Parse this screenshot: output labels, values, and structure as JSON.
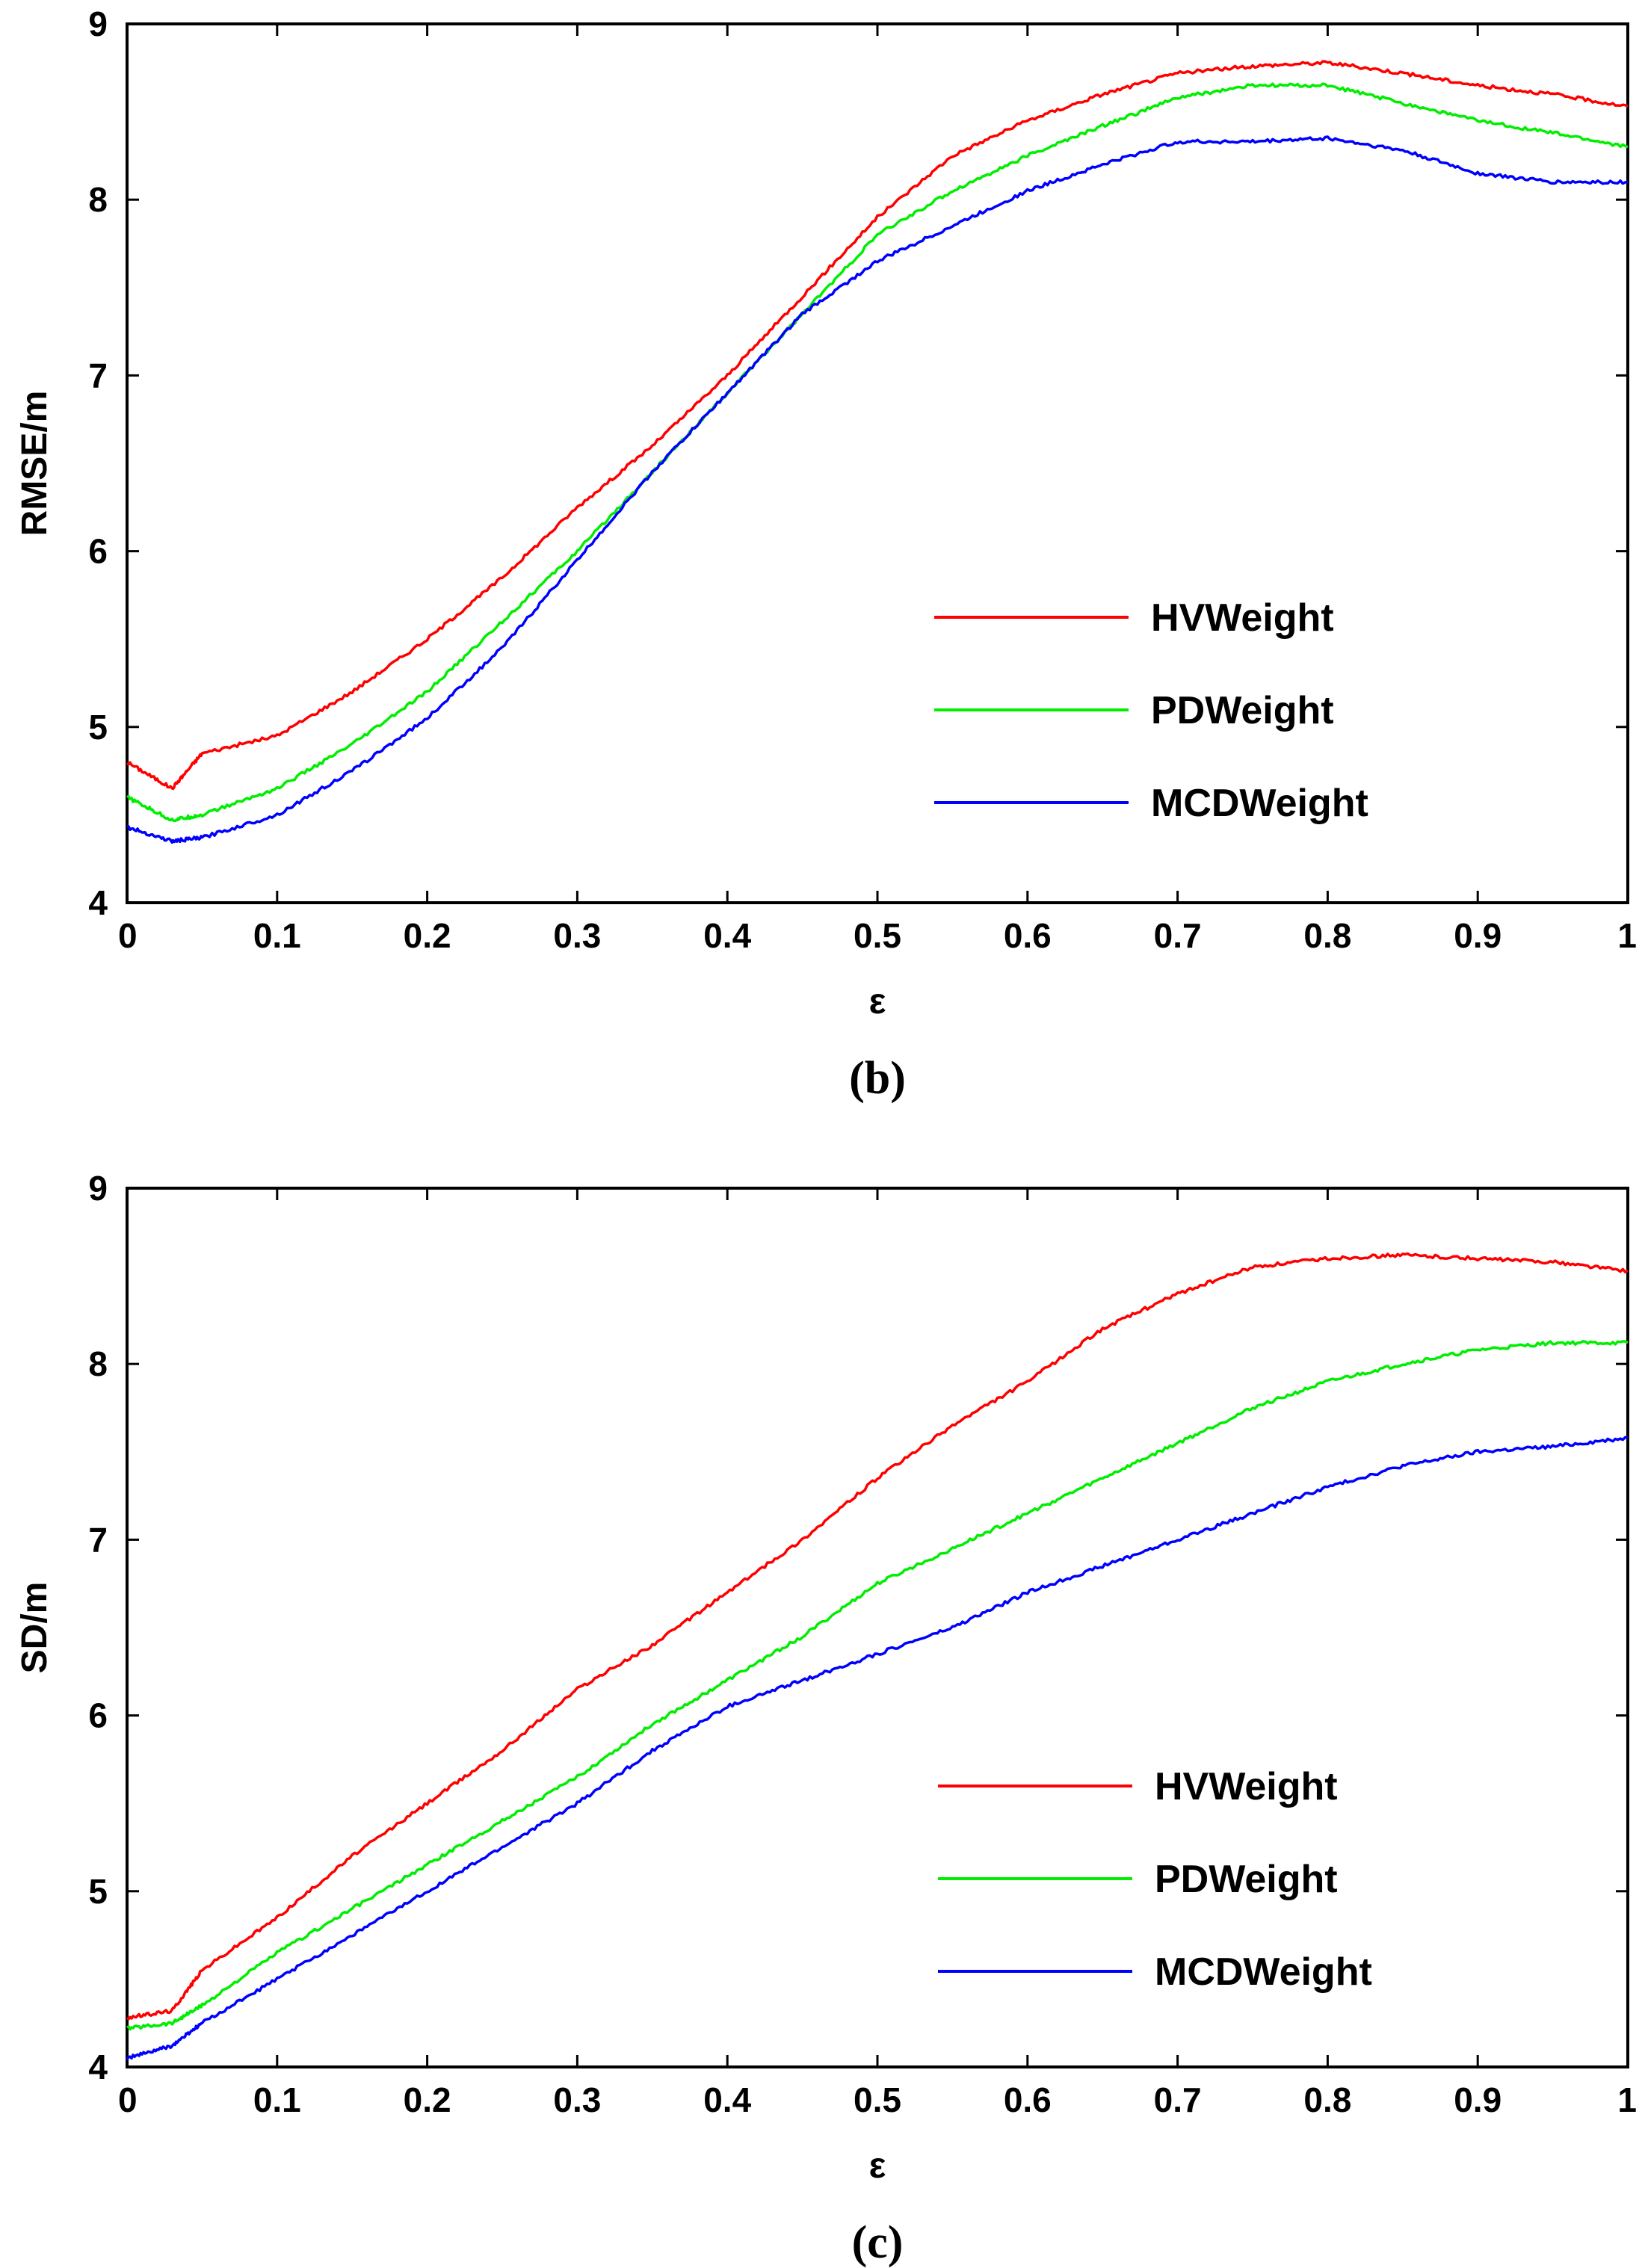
{
  "chart_data": [
    {
      "type": "line",
      "panel": "b",
      "caption": "(b)",
      "title": "",
      "xlabel": "ε",
      "ylabel": "RMSE/m",
      "xlim": [
        0,
        1
      ],
      "ylim": [
        4,
        9
      ],
      "xticks": [
        "0",
        "0.1",
        "0.2",
        "0.3",
        "0.4",
        "0.5",
        "0.6",
        "0.7",
        "0.8",
        "0.9",
        "1"
      ],
      "yticks": [
        "4",
        "5",
        "6",
        "7",
        "8",
        "9"
      ],
      "grid": false,
      "legend_position": "lower-right",
      "x": [
        0,
        0.03,
        0.05,
        0.1,
        0.15,
        0.2,
        0.25,
        0.3,
        0.35,
        0.4,
        0.45,
        0.5,
        0.55,
        0.6,
        0.65,
        0.7,
        0.75,
        0.8,
        0.85,
        0.9,
        0.95,
        1.0
      ],
      "series": [
        {
          "name": "HVWeight",
          "color": "#ff0000",
          "values": [
            4.8,
            4.65,
            4.85,
            4.95,
            5.2,
            5.5,
            5.85,
            6.25,
            6.6,
            7.0,
            7.45,
            7.9,
            8.25,
            8.45,
            8.6,
            8.72,
            8.76,
            8.78,
            8.72,
            8.65,
            8.6,
            8.53
          ]
        },
        {
          "name": "PDWeight",
          "color": "#00ee00",
          "values": [
            4.6,
            4.47,
            4.5,
            4.65,
            4.9,
            5.2,
            5.6,
            6.0,
            6.45,
            6.9,
            7.35,
            7.8,
            8.05,
            8.25,
            8.42,
            8.58,
            8.65,
            8.65,
            8.55,
            8.45,
            8.38,
            8.3
          ]
        },
        {
          "name": "MCDWeight",
          "color": "#0000ff",
          "values": [
            4.43,
            4.35,
            4.37,
            4.5,
            4.75,
            5.05,
            5.45,
            5.95,
            6.45,
            6.9,
            7.35,
            7.65,
            7.85,
            8.05,
            8.2,
            8.33,
            8.33,
            8.35,
            8.28,
            8.15,
            8.1,
            8.1
          ]
        }
      ]
    },
    {
      "type": "line",
      "panel": "c",
      "caption": "(c)",
      "title": "",
      "xlabel": "ε",
      "ylabel": "SD/m",
      "xlim": [
        0,
        1
      ],
      "ylim": [
        4,
        9
      ],
      "xticks": [
        "0",
        "0.1",
        "0.2",
        "0.3",
        "0.4",
        "0.5",
        "0.6",
        "0.7",
        "0.8",
        "0.9",
        "1"
      ],
      "yticks": [
        "4",
        "5",
        "6",
        "7",
        "8",
        "9"
      ],
      "grid": false,
      "legend_position": "lower-right",
      "x": [
        0,
        0.03,
        0.05,
        0.1,
        0.15,
        0.2,
        0.25,
        0.3,
        0.35,
        0.4,
        0.45,
        0.5,
        0.55,
        0.6,
        0.65,
        0.7,
        0.75,
        0.8,
        0.85,
        0.9,
        0.95,
        1.0
      ],
      "series": [
        {
          "name": "HVWeight",
          "color": "#ff0000",
          "values": [
            4.28,
            4.32,
            4.55,
            4.85,
            5.2,
            5.5,
            5.8,
            6.15,
            6.4,
            6.7,
            7.0,
            7.35,
            7.65,
            7.9,
            8.2,
            8.4,
            8.55,
            8.6,
            8.62,
            8.6,
            8.58,
            8.53
          ]
        },
        {
          "name": "PDWeight",
          "color": "#00ee00",
          "values": [
            4.22,
            4.25,
            4.35,
            4.65,
            4.9,
            5.15,
            5.4,
            5.65,
            5.95,
            6.2,
            6.45,
            6.75,
            6.95,
            7.15,
            7.35,
            7.55,
            7.75,
            7.9,
            8.0,
            8.08,
            8.12,
            8.12
          ]
        },
        {
          "name": "MCDWeight",
          "color": "#0000ff",
          "values": [
            4.05,
            4.12,
            4.25,
            4.5,
            4.75,
            5.0,
            5.25,
            5.5,
            5.8,
            6.05,
            6.2,
            6.35,
            6.5,
            6.7,
            6.85,
            7.0,
            7.15,
            7.3,
            7.42,
            7.5,
            7.53,
            7.58
          ]
        }
      ]
    }
  ]
}
